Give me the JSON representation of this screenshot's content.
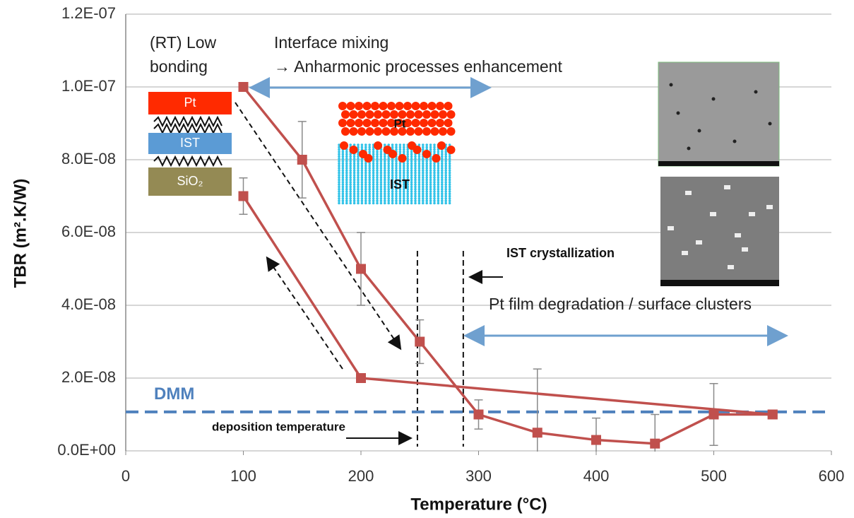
{
  "chart_data": {
    "type": "line",
    "x_label": "Temperature (°C)",
    "y_label": "TBR (m².K/W)",
    "xlim": [
      0,
      600
    ],
    "xticks": [
      0,
      100,
      200,
      300,
      400,
      500,
      600
    ],
    "ylim": [
      0,
      1.2e-07
    ],
    "yticks": [
      {
        "value": 0,
        "label": "0.0E+00"
      },
      {
        "value": 2e-08,
        "label": "2.0E-08"
      },
      {
        "value": 4e-08,
        "label": "4.0E-08"
      },
      {
        "value": 6e-08,
        "label": "6.0E-08"
      },
      {
        "value": 8e-08,
        "label": "8.0E-08"
      },
      {
        "value": 1e-07,
        "label": "1.0E-07"
      },
      {
        "value": 1.2e-07,
        "label": "1.2E-07"
      }
    ],
    "grid": true,
    "series": [
      {
        "color": "#c0504d",
        "x": [
          100,
          150,
          200,
          250,
          300,
          350,
          400,
          450,
          500,
          550
        ],
        "values": [
          1e-07,
          8e-08,
          5e-08,
          3e-08,
          1e-08,
          5e-09,
          3e-09,
          2e-09,
          1e-08,
          1e-08
        ],
        "errors": [
          null,
          1.05e-08,
          1e-08,
          6e-09,
          4e-09,
          1.75e-08,
          6e-09,
          8e-09,
          8.5e-09,
          null
        ]
      },
      {
        "color": "#c0504d",
        "x": [
          100,
          200,
          550
        ],
        "values": [
          7e-08,
          2e-08,
          1e-08
        ],
        "errors": [
          5e-09,
          null,
          null
        ]
      }
    ],
    "hline": {
      "value": 1.07e-08,
      "label": "DMM",
      "color": "#4f81bd"
    },
    "vlines": [
      248,
      287
    ],
    "annotations": {
      "low_bonding": [
        "(RT) Low",
        "bonding"
      ],
      "interface": [
        "Interface mixing",
        "→ Anharmonic processes enhancement"
      ],
      "crystallization": "IST crystallization",
      "degradation": "Pt film degradation / surface clusters",
      "deposition": "deposition temperature",
      "stack": [
        "Pt",
        "IST",
        "SiO₂"
      ],
      "inset": [
        "Pt",
        "IST"
      ]
    }
  }
}
